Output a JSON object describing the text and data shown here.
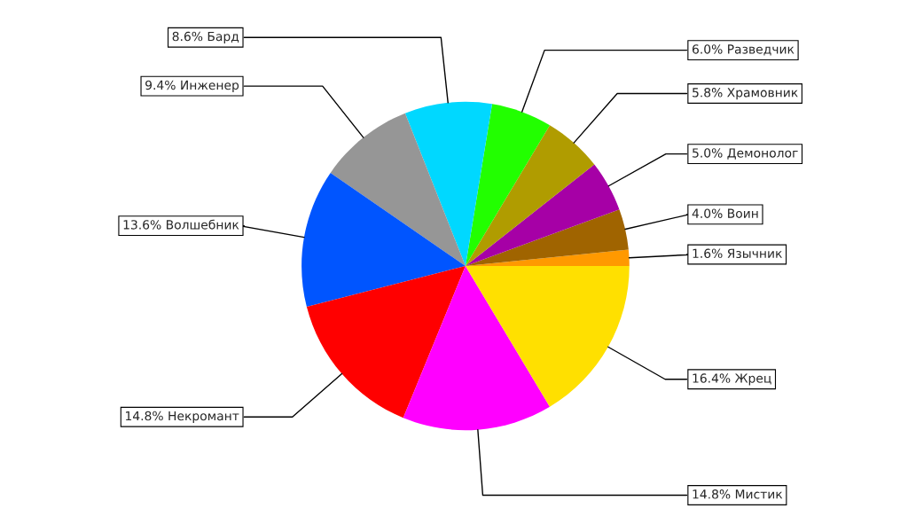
{
  "chart_data": {
    "type": "pie",
    "categories": [
      "Язычник",
      "Воин",
      "Демонолог",
      "Храмовник",
      "Разведчик",
      "Бард",
      "Инженер",
      "Волшебник",
      "Некромант",
      "Мистик",
      "Жрец"
    ],
    "values": [
      1.6,
      4.0,
      5.0,
      5.8,
      6.0,
      8.6,
      9.4,
      13.6,
      14.8,
      14.8,
      16.4
    ],
    "value_labels": [
      "1.6%",
      "4.0%",
      "5.0%",
      "5.8%",
      "6.0%",
      "8.6%",
      "9.4%",
      "13.6%",
      "14.8%",
      "14.8%",
      "16.4%"
    ],
    "colors": [
      "#ff9900",
      "#a06400",
      "#a600a6",
      "#b09c00",
      "#22ff00",
      "#00d8ff",
      "#969696",
      "#0055ff",
      "#ff0000",
      "#ff00ff",
      "#ffe000"
    ],
    "legend": false
  }
}
